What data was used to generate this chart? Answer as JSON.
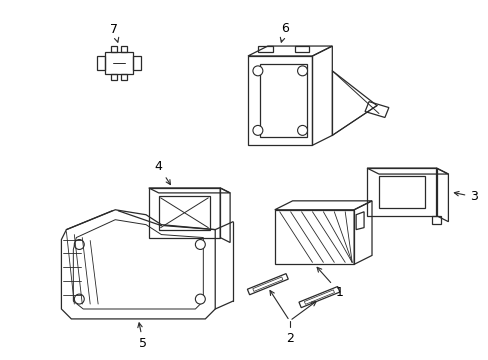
{
  "bg_color": "#ffffff",
  "line_color": "#2a2a2a",
  "label_color": "#000000",
  "figsize": [
    4.89,
    3.6
  ],
  "dpi": 100,
  "label_fontsize": 9
}
